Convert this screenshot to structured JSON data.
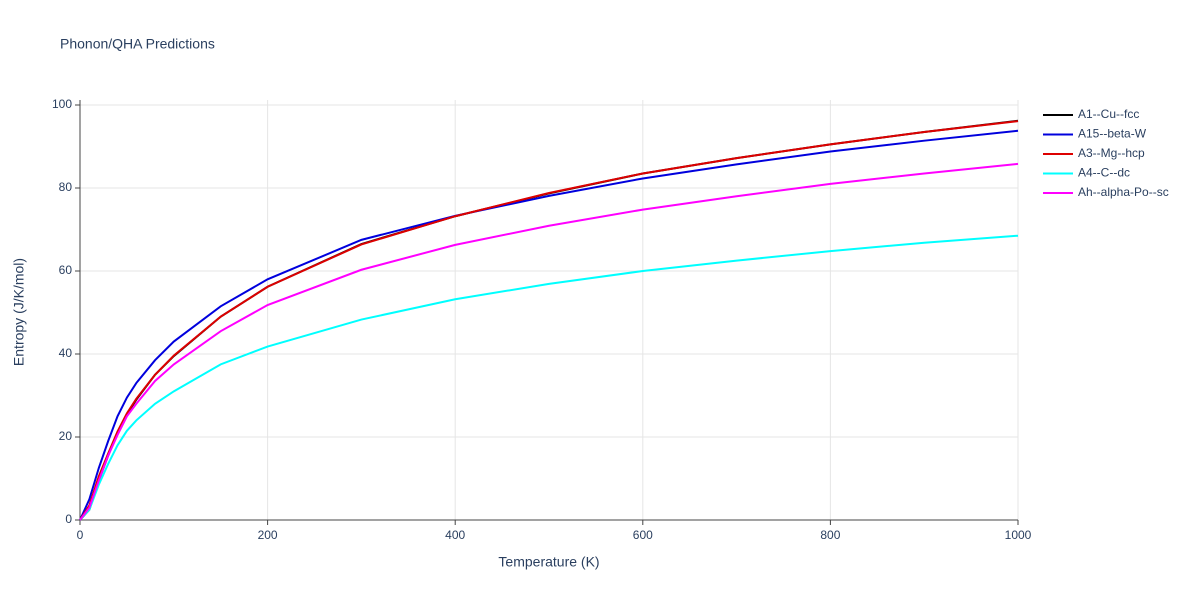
{
  "chart_data": {
    "type": "line",
    "title": "Phonon/QHA Predictions",
    "x_label": "Temperature (K)",
    "y_label": "Entropy (J/K/mol)",
    "x": [
      0,
      10,
      20,
      30,
      40,
      50,
      60,
      80,
      100,
      150,
      200,
      300,
      400,
      500,
      600,
      700,
      800,
      900,
      1000
    ],
    "series": [
      {
        "name": "A1--Cu--fcc",
        "color": "#000000",
        "values": [
          0,
          2.5,
          9.5,
          15.5,
          21,
          25.5,
          29,
          35,
          39.5,
          49,
          56.2,
          66.5,
          73.2,
          78.7,
          83.5,
          87.2,
          90.5,
          93.5,
          96.2
        ]
      },
      {
        "name": "A15--beta-W",
        "color": "#0000dd",
        "values": [
          0,
          5,
          12.5,
          19,
          25,
          29.5,
          33,
          38.5,
          43,
          51.5,
          58,
          67.5,
          73.3,
          78.1,
          82.3,
          85.7,
          88.8,
          91.4,
          93.8
        ]
      },
      {
        "name": "A3--Mg--hcp",
        "color": "#dd0000",
        "values": [
          0,
          3.5,
          10.5,
          16,
          21.3,
          25.7,
          29.2,
          35,
          39.6,
          49,
          56.2,
          66.4,
          73.2,
          78.8,
          83.5,
          87.2,
          90.5,
          93.5,
          96.1
        ]
      },
      {
        "name": "A4--C--dc",
        "color": "#00ffff",
        "values": [
          0,
          2.5,
          8.5,
          13.5,
          18,
          21.5,
          24,
          28,
          31,
          37.5,
          41.8,
          48.3,
          53.2,
          56.9,
          60,
          62.5,
          64.8,
          66.8,
          68.5
        ]
      },
      {
        "name": "Ah--alpha-Po--sc",
        "color": "#ff00ff",
        "values": [
          0,
          3,
          9.5,
          15.5,
          20.5,
          25,
          28,
          33.5,
          37.5,
          45.5,
          51.8,
          60.3,
          66.3,
          70.9,
          74.8,
          78,
          81,
          83.5,
          85.8
        ]
      }
    ],
    "xlim": [
      0,
      1000
    ],
    "xticks": [
      0,
      200,
      400,
      600,
      800,
      1000
    ],
    "ylim": [
      0,
      100
    ],
    "yticks": [
      0,
      20,
      40,
      60,
      80,
      100
    ],
    "grid": true,
    "legend": "top right"
  }
}
